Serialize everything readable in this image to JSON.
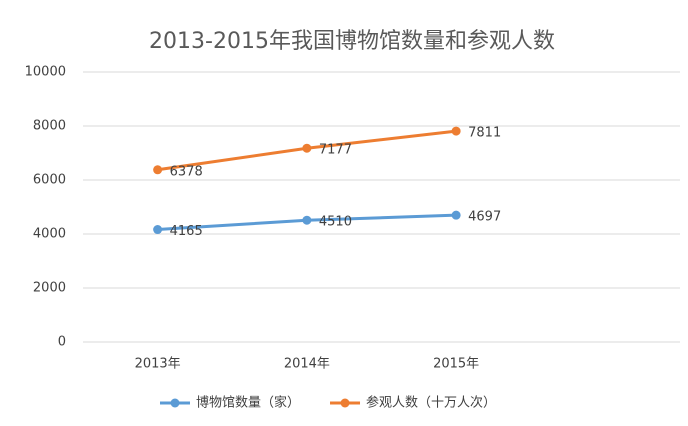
{
  "chart_data": {
    "type": "line",
    "title": "2013-2015年我国博物馆数量和参观人数",
    "categories": [
      "2013年",
      "2014年",
      "2015年",
      null
    ],
    "series": [
      {
        "name": "博物馆数量（家）",
        "color": "#5b9bd5",
        "values": [
          4165,
          4510,
          4697,
          null
        ]
      },
      {
        "name": "参观人数（十万人次）",
        "color": "#ed7d31",
        "values": [
          6378,
          7177,
          7811,
          null
        ]
      }
    ],
    "ylim": [
      0,
      10000
    ],
    "yticks": [
      0,
      2000,
      4000,
      6000,
      8000,
      10000
    ],
    "grid": true,
    "legend": "bottom"
  }
}
